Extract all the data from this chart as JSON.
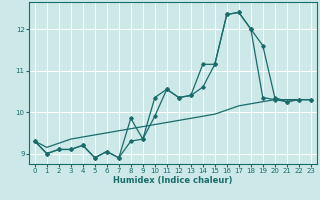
{
  "xlabel": "Humidex (Indice chaleur)",
  "bg_color": "#cce8e8",
  "grid_color": "#ffffff",
  "line_color": "#1a6b6b",
  "xlim": [
    -0.5,
    23.5
  ],
  "ylim": [
    8.75,
    12.65
  ],
  "xticks": [
    0,
    1,
    2,
    3,
    4,
    5,
    6,
    7,
    8,
    9,
    10,
    11,
    12,
    13,
    14,
    15,
    16,
    17,
    18,
    19,
    20,
    21,
    22,
    23
  ],
  "yticks": [
    9,
    10,
    11,
    12
  ],
  "series1": [
    9.3,
    9.0,
    9.1,
    9.1,
    9.2,
    8.9,
    9.05,
    8.9,
    9.85,
    9.35,
    10.35,
    10.55,
    10.35,
    10.4,
    11.15,
    11.15,
    12.35,
    12.4,
    12.0,
    10.35,
    10.3,
    10.25,
    10.3,
    10.3
  ],
  "series2": [
    9.3,
    9.0,
    9.1,
    9.1,
    9.2,
    8.9,
    9.05,
    8.9,
    9.3,
    9.35,
    9.9,
    10.55,
    10.35,
    10.4,
    10.6,
    11.15,
    12.35,
    12.4,
    12.0,
    11.6,
    10.35,
    10.25,
    10.3,
    10.3
  ],
  "series3": [
    9.3,
    9.15,
    9.25,
    9.35,
    9.4,
    9.45,
    9.5,
    9.55,
    9.6,
    9.65,
    9.7,
    9.75,
    9.8,
    9.85,
    9.9,
    9.95,
    10.05,
    10.15,
    10.2,
    10.25,
    10.3,
    10.3,
    10.3,
    10.3
  ]
}
